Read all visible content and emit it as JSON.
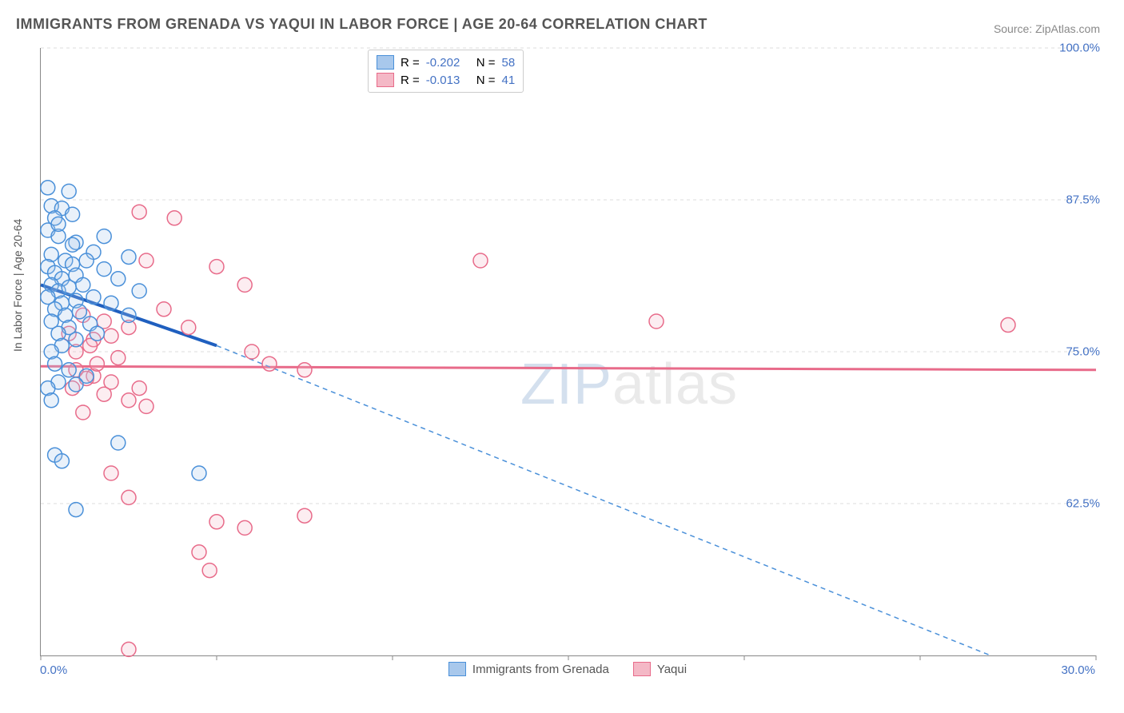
{
  "title": "IMMIGRANTS FROM GRENADA VS YAQUI IN LABOR FORCE | AGE 20-64 CORRELATION CHART",
  "source_label": "Source: ",
  "source_value": "ZipAtlas.com",
  "ylabel": "In Labor Force | Age 20-64",
  "chart": {
    "type": "scatter",
    "xlim": [
      0,
      30
    ],
    "ylim": [
      50,
      100
    ],
    "x_ticks": [
      0,
      5,
      10,
      15,
      20,
      25,
      30
    ],
    "x_tick_labels_shown": {
      "0": "0.0%",
      "30": "30.0%"
    },
    "y_gridlines": [
      62.5,
      75.0,
      87.5,
      100.0
    ],
    "y_tick_labels": {
      "62.5": "62.5%",
      "75.0": "75.0%",
      "87.5": "87.5%",
      "100.0": "100.0%"
    },
    "grid_color": "#dddddd",
    "axis_color": "#888888",
    "background_color": "#ffffff",
    "label_color": "#4472c4",
    "title_color": "#555555",
    "marker_radius": 9,
    "marker_stroke_width": 1.5,
    "marker_fill_opacity": 0.25,
    "series": [
      {
        "name": "Immigrants from Grenada",
        "color_stroke": "#4a90d9",
        "color_fill": "#a8c8ec",
        "R": "-0.202",
        "N": "58",
        "trend_solid": {
          "x1": 0,
          "y1": 80.5,
          "x2": 5,
          "y2": 75.5
        },
        "trend_dashed": {
          "x1": 5,
          "y1": 75.5,
          "x2": 27,
          "y2": 50
        },
        "points": [
          [
            0.2,
            88.5
          ],
          [
            0.8,
            88.2
          ],
          [
            0.3,
            87.0
          ],
          [
            0.6,
            86.8
          ],
          [
            0.4,
            86.0
          ],
          [
            0.9,
            86.3
          ],
          [
            0.2,
            85.0
          ],
          [
            0.5,
            84.5
          ],
          [
            1.0,
            84.0
          ],
          [
            1.5,
            83.2
          ],
          [
            0.3,
            83.0
          ],
          [
            0.7,
            82.5
          ],
          [
            0.2,
            82.0
          ],
          [
            0.9,
            82.2
          ],
          [
            1.3,
            82.5
          ],
          [
            0.4,
            81.5
          ],
          [
            0.6,
            81.0
          ],
          [
            1.0,
            81.3
          ],
          [
            1.8,
            81.8
          ],
          [
            2.2,
            81.0
          ],
          [
            0.3,
            80.5
          ],
          [
            0.5,
            80.0
          ],
          [
            0.8,
            80.3
          ],
          [
            1.2,
            80.5
          ],
          [
            0.2,
            79.5
          ],
          [
            0.6,
            79.0
          ],
          [
            1.0,
            79.2
          ],
          [
            1.5,
            79.5
          ],
          [
            2.0,
            79.0
          ],
          [
            2.8,
            80.0
          ],
          [
            0.4,
            78.5
          ],
          [
            0.7,
            78.0
          ],
          [
            1.1,
            78.3
          ],
          [
            0.3,
            77.5
          ],
          [
            0.8,
            77.0
          ],
          [
            1.4,
            77.3
          ],
          [
            2.5,
            78.0
          ],
          [
            0.5,
            76.5
          ],
          [
            1.0,
            76.0
          ],
          [
            1.6,
            76.5
          ],
          [
            0.6,
            75.5
          ],
          [
            0.3,
            75.0
          ],
          [
            0.4,
            74.0
          ],
          [
            0.8,
            73.5
          ],
          [
            1.3,
            73.0
          ],
          [
            0.5,
            72.5
          ],
          [
            0.2,
            72.0
          ],
          [
            1.0,
            72.3
          ],
          [
            0.3,
            71.0
          ],
          [
            2.2,
            67.5
          ],
          [
            0.4,
            66.5
          ],
          [
            0.6,
            66.0
          ],
          [
            4.5,
            65.0
          ],
          [
            1.0,
            62.0
          ],
          [
            0.5,
            85.5
          ],
          [
            1.8,
            84.5
          ],
          [
            2.5,
            82.8
          ],
          [
            0.9,
            83.8
          ]
        ]
      },
      {
        "name": "Yaqui",
        "color_stroke": "#e86b8a",
        "color_fill": "#f4b8c6",
        "R": "-0.013",
        "N": "41",
        "trend_solid": {
          "x1": 0,
          "y1": 73.8,
          "x2": 30,
          "y2": 73.5
        },
        "points": [
          [
            2.8,
            86.5
          ],
          [
            3.8,
            86.0
          ],
          [
            3.0,
            82.5
          ],
          [
            5.0,
            82.0
          ],
          [
            5.8,
            80.5
          ],
          [
            12.5,
            82.5
          ],
          [
            1.2,
            78.0
          ],
          [
            1.8,
            77.5
          ],
          [
            2.5,
            77.0
          ],
          [
            0.8,
            76.5
          ],
          [
            1.5,
            76.0
          ],
          [
            2.0,
            76.3
          ],
          [
            17.5,
            77.5
          ],
          [
            27.5,
            77.2
          ],
          [
            6.0,
            75.0
          ],
          [
            7.5,
            73.5
          ],
          [
            1.0,
            73.5
          ],
          [
            1.5,
            73.0
          ],
          [
            2.0,
            72.5
          ],
          [
            2.8,
            72.0
          ],
          [
            1.3,
            72.8
          ],
          [
            0.9,
            72.0
          ],
          [
            1.8,
            71.5
          ],
          [
            2.5,
            71.0
          ],
          [
            3.0,
            70.5
          ],
          [
            1.2,
            70.0
          ],
          [
            1.6,
            74.0
          ],
          [
            2.2,
            74.5
          ],
          [
            2.0,
            65.0
          ],
          [
            2.5,
            63.0
          ],
          [
            5.0,
            61.0
          ],
          [
            5.8,
            60.5
          ],
          [
            7.5,
            61.5
          ],
          [
            4.5,
            58.5
          ],
          [
            4.8,
            57.0
          ],
          [
            2.5,
            50.5
          ],
          [
            1.0,
            75.0
          ],
          [
            1.4,
            75.5
          ],
          [
            3.5,
            78.5
          ],
          [
            4.2,
            77.0
          ],
          [
            6.5,
            74.0
          ]
        ]
      }
    ]
  },
  "legend_top": {
    "r_label": "R =",
    "n_label": "N ="
  },
  "watermark": {
    "part1": "ZIP",
    "part2": "atlas"
  }
}
